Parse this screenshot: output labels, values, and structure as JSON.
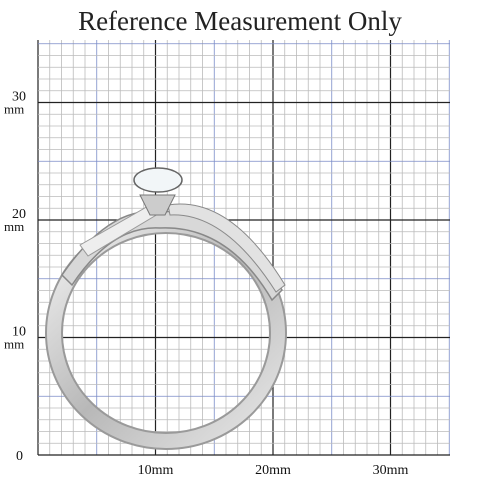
{
  "title": "Reference Measurement Only",
  "y_labels": [
    {
      "number": "30",
      "unit": "mm"
    },
    {
      "number": "20",
      "unit": "mm"
    },
    {
      "number": "10",
      "unit": "mm"
    }
  ],
  "origin_label": "0",
  "x_labels": [
    "10mm",
    "20mm",
    "30mm"
  ]
}
